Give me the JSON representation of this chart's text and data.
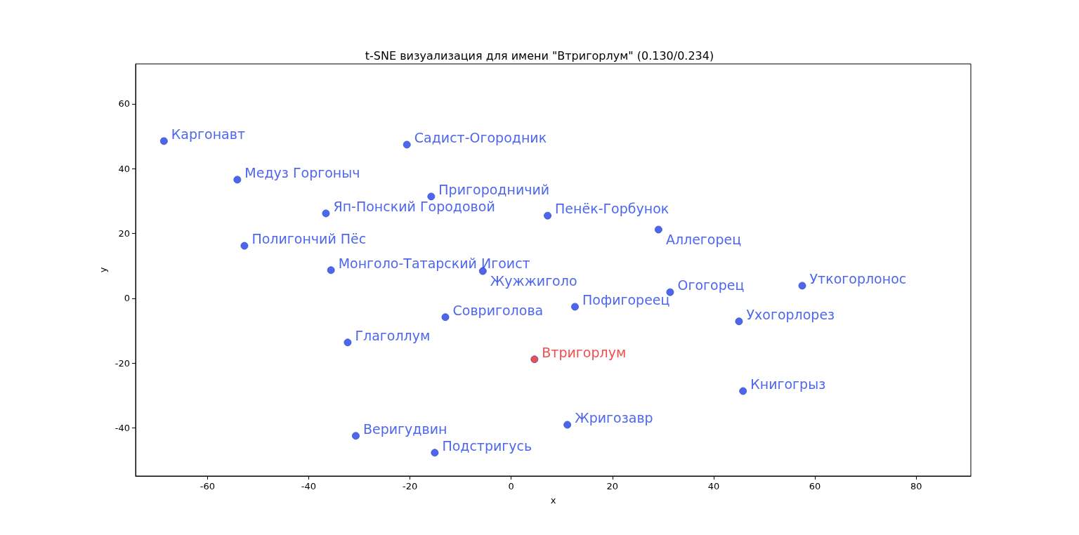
{
  "chart_data": {
    "type": "scatter",
    "title": "t-SNE визуализация для имени \"Втригорлум\" (0.130/0.234)",
    "xlabel": "x",
    "ylabel": "y",
    "xlim": [
      -74.2,
      90.8
    ],
    "ylim": [
      -54.8,
      72.3
    ],
    "xticks": [
      -60,
      -40,
      -20,
      0,
      20,
      40,
      60,
      80
    ],
    "yticks": [
      -40,
      -20,
      0,
      20,
      40,
      60
    ],
    "grid": false,
    "legend": false,
    "marker": "circle",
    "series": [
      {
        "name": "Каргонавт",
        "color": "#2040e8",
        "x": [
          -68.6
        ],
        "values": [
          48.5
        ]
      },
      {
        "name": "Медуз Горгоныч",
        "color": "#2040e8",
        "x": [
          -54.1
        ],
        "values": [
          36.6
        ]
      },
      {
        "name": "Садист-Огородник",
        "color": "#2040e8",
        "x": [
          -20.6
        ],
        "values": [
          47.4
        ]
      },
      {
        "name": "Пригородничий",
        "color": "#2040e8",
        "x": [
          -15.8
        ],
        "values": [
          31.4
        ]
      },
      {
        "name": "Яп-Понский Городовой",
        "color": "#2040e8",
        "x": [
          -36.6
        ],
        "values": [
          26.2
        ]
      },
      {
        "name": "Пенёк-Горбунок",
        "color": "#2040e8",
        "x": [
          7.2
        ],
        "values": [
          25.5
        ]
      },
      {
        "name": "Аллегорец",
        "color": "#2040e8",
        "x": [
          29.1
        ],
        "values": [
          21.2
        ]
      },
      {
        "name": "Полигончий Пёс",
        "color": "#2040e8",
        "x": [
          -52.7
        ],
        "values": [
          16.2
        ]
      },
      {
        "name": "Монголо-Татарский Игоист",
        "color": "#2040e8",
        "x": [
          -35.6
        ],
        "values": [
          8.7
        ]
      },
      {
        "name": "Жужжиголо",
        "color": "#2040e8",
        "x": [
          -5.6
        ],
        "values": [
          8.4
        ]
      },
      {
        "name": "Огогорец",
        "color": "#2040e8",
        "x": [
          31.4
        ],
        "values": [
          1.9
        ]
      },
      {
        "name": "Уткогорлонос",
        "color": "#2040e8",
        "x": [
          57.5
        ],
        "values": [
          3.9
        ]
      },
      {
        "name": "Пофигореец",
        "color": "#2040e8",
        "x": [
          12.6
        ],
        "values": [
          -2.6
        ]
      },
      {
        "name": "Совриголова",
        "color": "#2040e8",
        "x": [
          -13.0
        ],
        "values": [
          -5.8
        ]
      },
      {
        "name": "Ухогорлорез",
        "color": "#2040e8",
        "x": [
          45.0
        ],
        "values": [
          -7.1
        ]
      },
      {
        "name": "Глаголлум",
        "color": "#2040e8",
        "x": [
          -32.3
        ],
        "values": [
          -13.6
        ]
      },
      {
        "name": "Втригорлум",
        "color": "#f02020",
        "x": [
          4.6
        ],
        "values": [
          -18.8
        ]
      },
      {
        "name": "Книгогрыз",
        "color": "#2040e8",
        "x": [
          45.8
        ],
        "values": [
          -28.6
        ]
      },
      {
        "name": "Жригозавр",
        "color": "#2040e8",
        "x": [
          11.1
        ],
        "values": [
          -39.0
        ]
      },
      {
        "name": "Веригудвин",
        "color": "#2040e8",
        "x": [
          -30.7
        ],
        "values": [
          -42.4
        ]
      },
      {
        "name": "Подстригусь",
        "color": "#2040e8",
        "x": [
          -15.1
        ],
        "values": [
          -47.6
        ]
      }
    ]
  }
}
